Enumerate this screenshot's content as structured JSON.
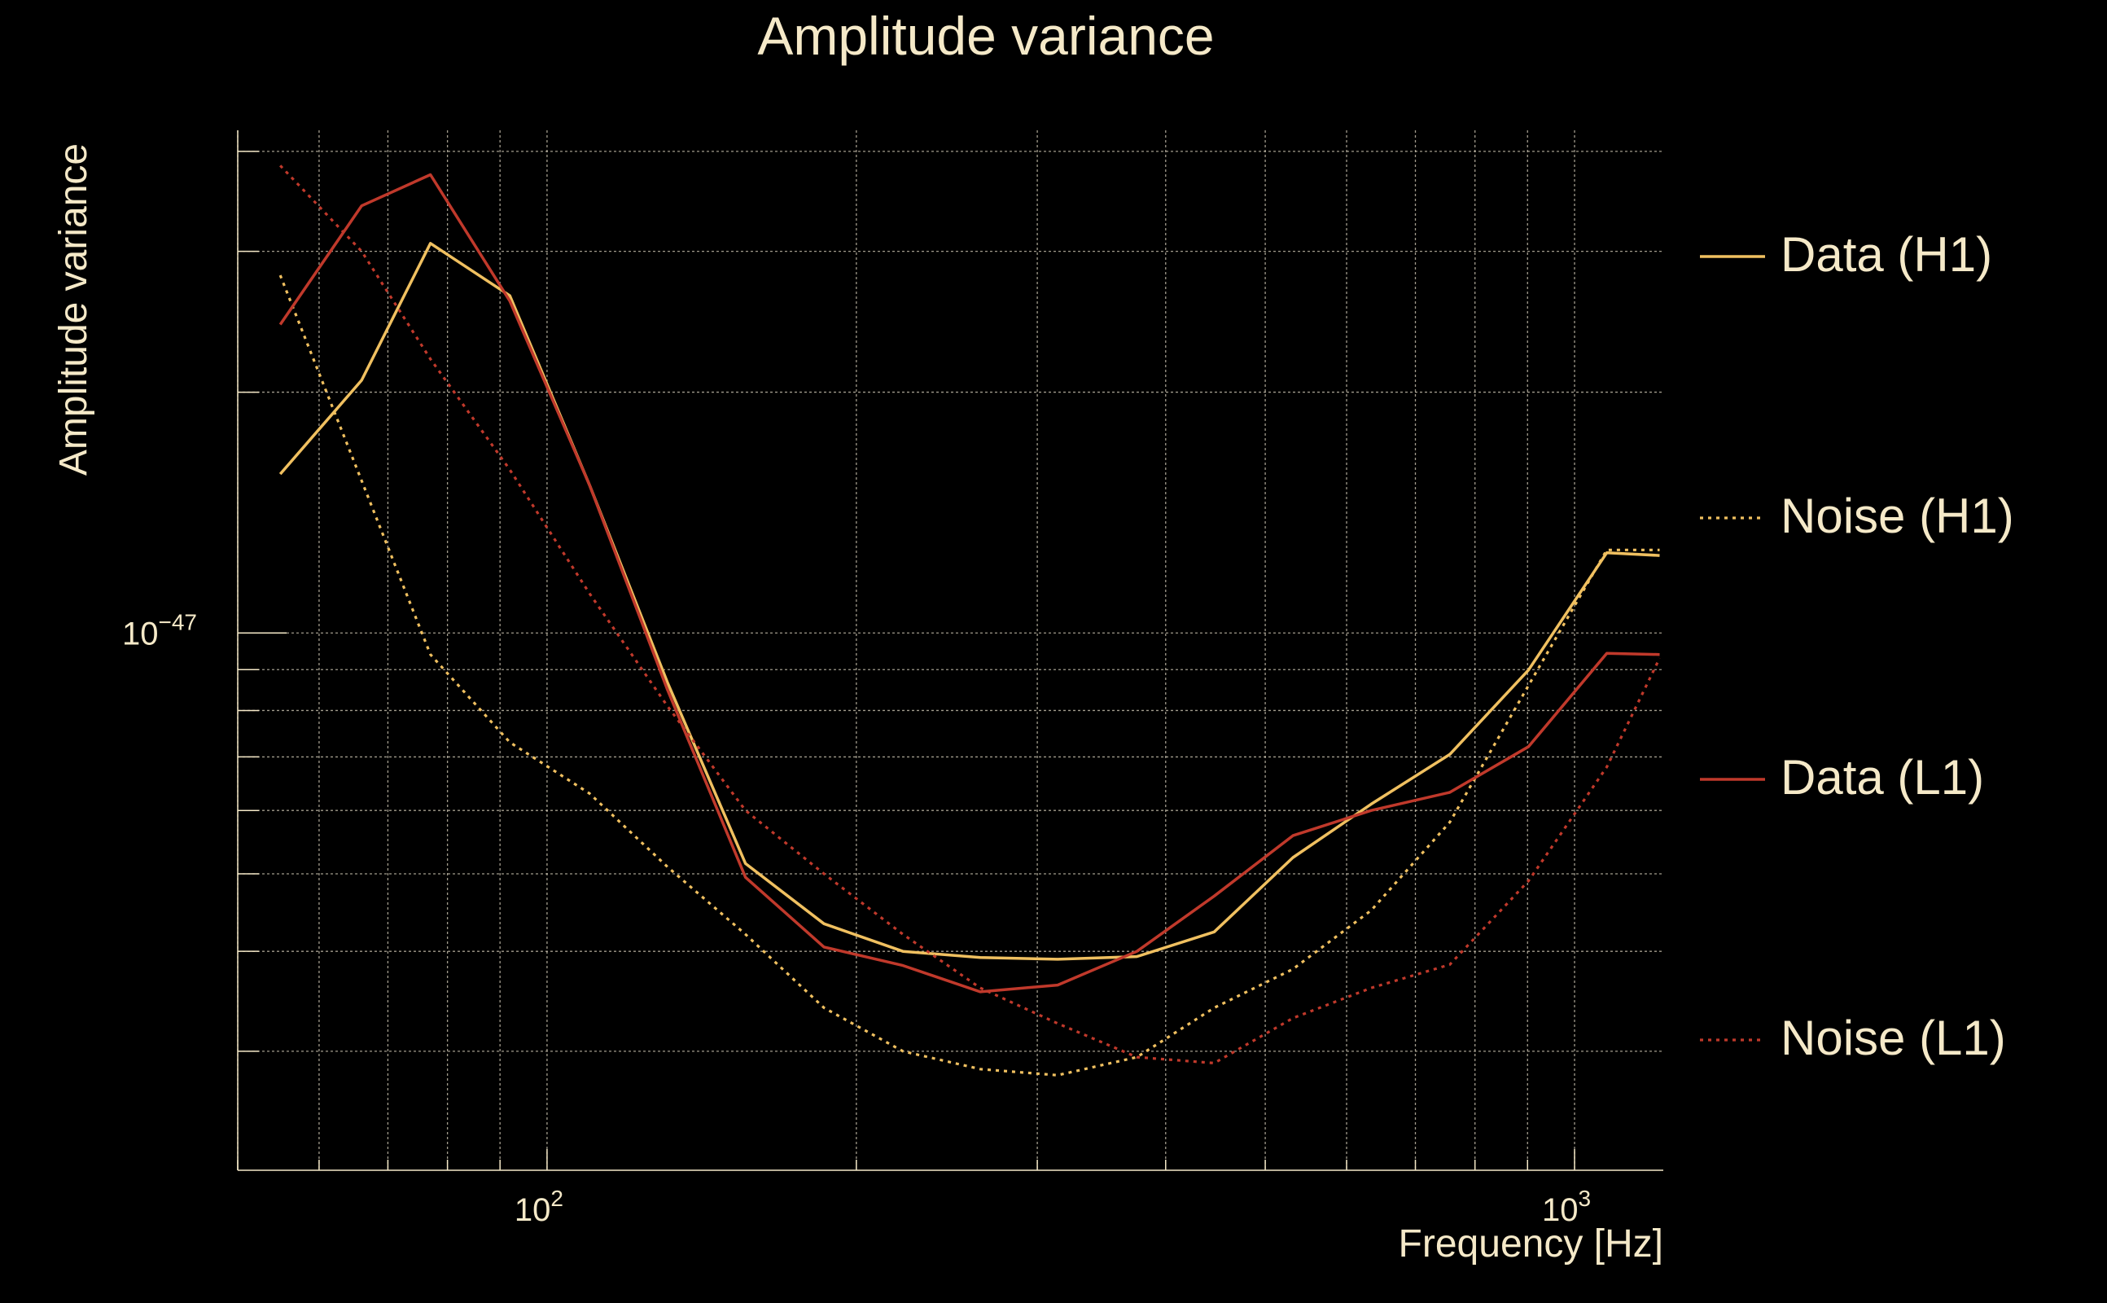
{
  "chart_data": {
    "type": "line",
    "title": "Amplitude variance",
    "xlabel": "Frequency [Hz]",
    "ylabel": "Amplitude variance",
    "xscale": "log",
    "yscale": "log",
    "xlim": [
      50,
      1220
    ],
    "ylim": [
      2.13e-48,
      4.25e-47
    ],
    "x_ticks": [
      {
        "value": 100,
        "base": "10",
        "exp": "2"
      },
      {
        "value": 1000,
        "base": "10",
        "exp": "3"
      }
    ],
    "y_ticks": [
      {
        "value": 1e-47,
        "base": "10",
        "exp": "−47"
      }
    ],
    "grid": true,
    "legend_position": "right",
    "x": [
      55,
      66,
      77,
      92,
      110,
      131,
      156,
      186,
      222,
      264,
      314,
      375,
      446,
      532,
      634,
      756,
      902,
      1075,
      1210
    ],
    "series": [
      {
        "name": "Data (H1)",
        "color": "#f0c060",
        "dash": "solid",
        "values": [
          1.58e-47,
          2.07e-47,
          3.07e-47,
          2.64e-47,
          1.53e-47,
          8.67e-48,
          5.15e-48,
          4.33e-48,
          4e-48,
          3.93e-48,
          3.91e-48,
          3.94e-48,
          4.23e-48,
          5.24e-48,
          6.11e-48,
          7.05e-48,
          8.99e-48,
          1.26e-47,
          1.25e-47
        ]
      },
      {
        "name": "Noise (H1)",
        "color": "#f0c060",
        "dash": "dotted",
        "values": [
          2.8e-47,
          1.55e-47,
          9.4e-48,
          7.3e-48,
          6.3e-48,
          5.1e-48,
          4.2e-48,
          3.4e-48,
          3e-48,
          2.85e-48,
          2.8e-48,
          2.95e-48,
          3.4e-48,
          3.8e-48,
          4.5e-48,
          5.8e-48,
          8.6e-48,
          1.27e-47,
          1.27e-47
        ]
      },
      {
        "name": "Data (L1)",
        "color": "#c0392b",
        "dash": "solid",
        "values": [
          2.43e-47,
          3.42e-47,
          3.74e-47,
          2.6e-47,
          1.53e-47,
          8.49e-48,
          4.95e-48,
          4.05e-48,
          3.84e-48,
          3.56e-48,
          3.63e-48,
          4e-48,
          4.69e-48,
          5.58e-48,
          6e-48,
          6.32e-48,
          7.21e-48,
          9.43e-48,
          9.4e-48
        ]
      },
      {
        "name": "Noise (L1)",
        "color": "#c0392b",
        "dash": "dotted",
        "values": [
          3.84e-47,
          3e-47,
          2.2e-47,
          1.6e-47,
          1.12e-47,
          8.1e-48,
          6e-48,
          5e-48,
          4.2e-48,
          3.6e-48,
          3.25e-48,
          2.95e-48,
          2.9e-48,
          3.3e-48,
          3.6e-48,
          3.85e-48,
          4.9e-48,
          6.8e-48,
          9.3e-48
        ]
      }
    ]
  }
}
